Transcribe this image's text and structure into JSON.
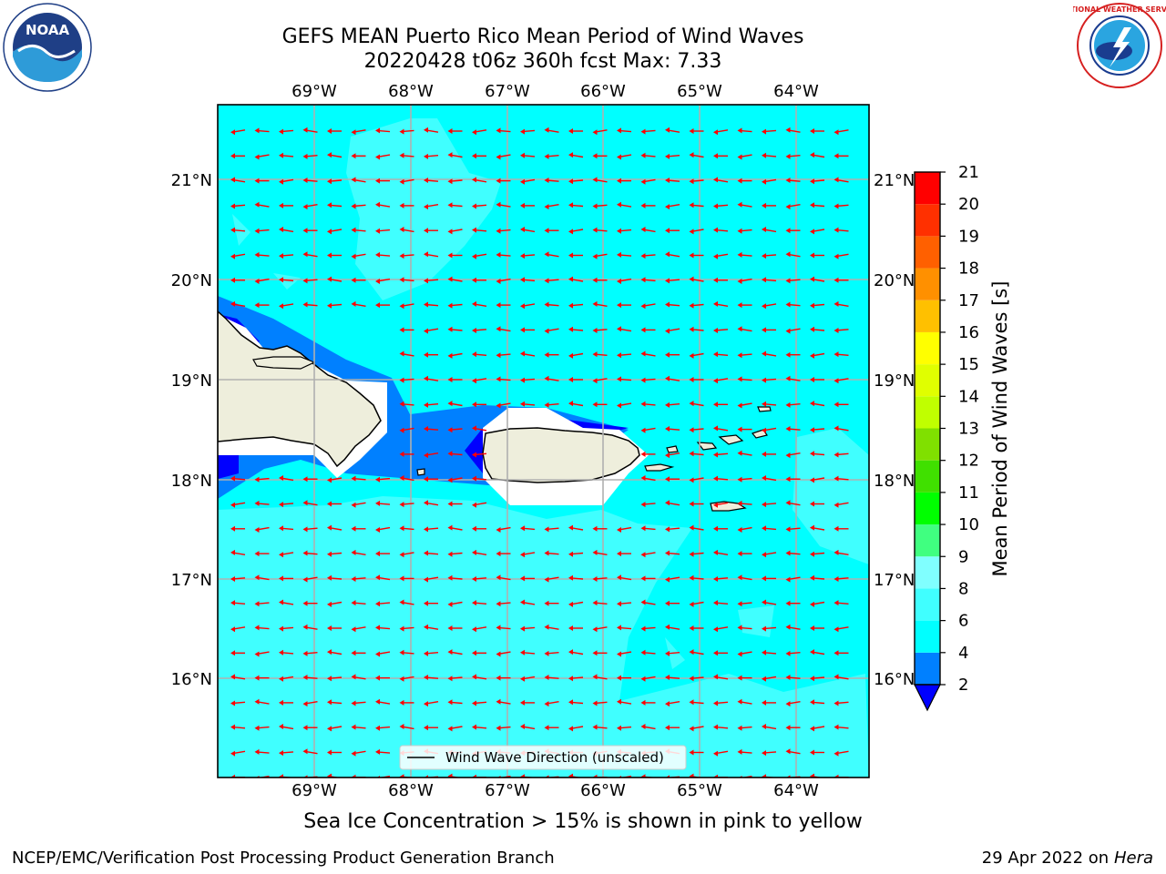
{
  "header": {
    "title_line1": "GEFS MEAN Puerto Rico Mean Period of Wind Waves",
    "title_line2": "20220428 t06z 360h fcst   Max: 7.33"
  },
  "logos": {
    "left": "noaa-logo",
    "left_text": "NOAA",
    "right": "nws-logo",
    "right_text": "NATIONAL WEATHER SERVICE"
  },
  "map": {
    "lon_labels": [
      "69°W",
      "68°W",
      "67°W",
      "66°W",
      "65°W",
      "64°W"
    ],
    "lat_labels": [
      "21°N",
      "20°N",
      "19°N",
      "18°N",
      "17°N",
      "16°N"
    ],
    "ocean_color": "#00ffff",
    "land_color": "#eeeedc",
    "arrow_color": "#ff0000",
    "wind_direction": "westward",
    "legend_label": "Wind Wave Direction (unscaled)"
  },
  "colorbar": {
    "title": "Mean Period of Wind Waves [s]",
    "ticks": [
      "2",
      "4",
      "6",
      "8",
      "9",
      "10",
      "11",
      "12",
      "13",
      "14",
      "15",
      "16",
      "17",
      "18",
      "19",
      "20",
      "21"
    ],
    "colors": [
      "#0000ff",
      "#0080ff",
      "#00ffff",
      "#40ffff",
      "#80ffff",
      "#40ff80",
      "#00ff00",
      "#40e000",
      "#80e000",
      "#c0ff00",
      "#e0ff00",
      "#ffff00",
      "#ffc000",
      "#ff9000",
      "#ff6000",
      "#ff3000",
      "#ff0000"
    ]
  },
  "subtitle": "Sea Ice Concentration > 15% is shown in pink to yellow",
  "footer": {
    "left": "NCEP/EMC/Verification Post Processing Product Generation Branch",
    "right_date": "29 Apr 2022 on ",
    "right_machine": "Hera"
  }
}
